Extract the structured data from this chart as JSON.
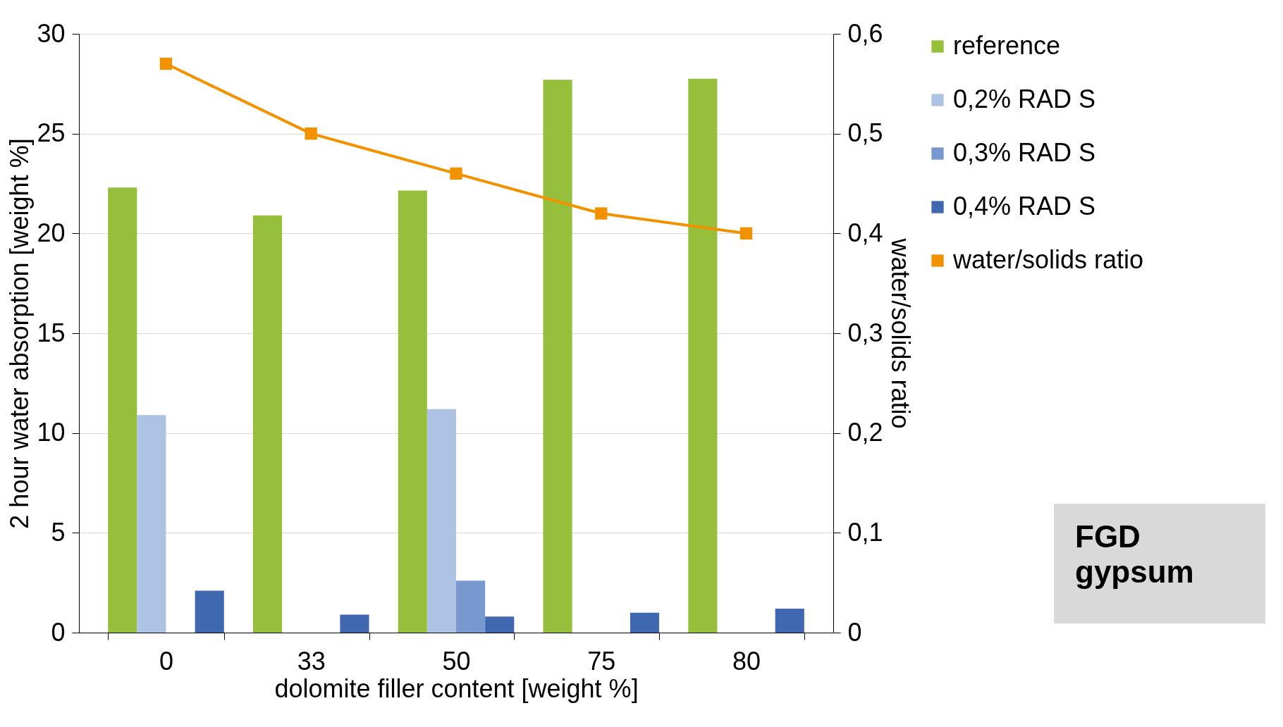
{
  "chart_data": {
    "type": "bar",
    "xlabel": "dolomite filler content [weight %]",
    "ylabel": "2 hour water absorption [weight %]",
    "y2label": "water/solids ratio",
    "categories": [
      "0",
      "33",
      "50",
      "75",
      "80"
    ],
    "series": [
      {
        "name": "reference",
        "color": "#96c03c",
        "values": [
          22.3,
          20.9,
          22.15,
          27.7,
          27.75
        ]
      },
      {
        "name": "0,2% RAD S",
        "color": "#adc3e3",
        "values": [
          10.9,
          null,
          11.2,
          null,
          null
        ]
      },
      {
        "name": "0,3% RAD S",
        "color": "#7899d0",
        "values": [
          null,
          null,
          2.6,
          null,
          null
        ]
      },
      {
        "name": "0,4% RAD S",
        "color": "#4068b0",
        "values": [
          2.1,
          0.9,
          0.8,
          1.0,
          1.2
        ]
      },
      {
        "name": "water/solids ratio",
        "type": "line",
        "axis": "y2",
        "color": "#f39200",
        "marker": "square",
        "values": [
          0.57,
          0.5,
          0.46,
          0.42,
          0.4
        ]
      }
    ],
    "ylim": [
      0,
      30
    ],
    "yticks": [
      0,
      5,
      10,
      15,
      20,
      25,
      30
    ],
    "y2lim": [
      0,
      0.6
    ],
    "y2ticks": [
      {
        "value": 0,
        "label": "0"
      },
      {
        "value": 0.1,
        "label": "0,1"
      },
      {
        "value": 0.2,
        "label": "0,2"
      },
      {
        "value": 0.3,
        "label": "0,3"
      },
      {
        "value": 0.4,
        "label": "0,4"
      },
      {
        "value": 0.5,
        "label": "0,5"
      },
      {
        "value": 0.6,
        "label": "0,6"
      }
    ],
    "grid": "y",
    "legend": "right",
    "annotations": [
      "FGD gypsum"
    ]
  }
}
